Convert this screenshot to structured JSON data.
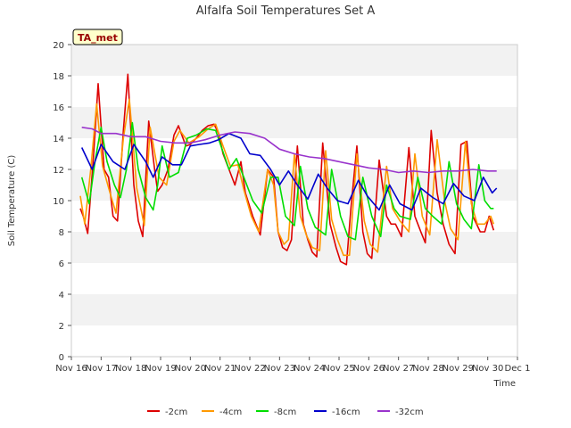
{
  "chart_data": {
    "type": "line",
    "title": "Alfalfa Soil Temperatures Set A",
    "xlabel": "Time",
    "ylabel": "Soil Temperature (C)",
    "badge": "TA_met",
    "ylim": [
      0,
      20
    ],
    "y_ticks": [
      "0",
      "2",
      "4",
      "6",
      "8",
      "10",
      "12",
      "14",
      "16",
      "18",
      "20"
    ],
    "x_ticks": [
      "Nov 16",
      "Nov 17",
      "Nov 18",
      "Nov 19",
      "Nov 20",
      "Nov 21",
      "Nov 22",
      "Nov 23",
      "Nov 24",
      "Nov 25",
      "Nov 26",
      "Nov 27",
      "Nov 28",
      "Nov 29",
      "Nov 30",
      "Dec 1"
    ],
    "x_domain_days": [
      0,
      15
    ],
    "grid": "horizontal alternating bands",
    "legend_position": "bottom",
    "series": [
      {
        "name": "-2cm",
        "color": "#dd0000",
        "x": [
          0.3,
          0.4,
          0.55,
          0.75,
          0.9,
          1.1,
          1.25,
          1.4,
          1.55,
          1.75,
          1.9,
          2.1,
          2.25,
          2.4,
          2.6,
          2.8,
          2.9,
          3.05,
          3.25,
          3.45,
          3.6,
          3.85,
          4.0,
          4.2,
          4.4,
          4.6,
          4.8,
          4.95,
          5.1,
          5.3,
          5.5,
          5.7,
          5.85,
          6.1,
          6.35,
          6.6,
          6.8,
          6.95,
          7.1,
          7.25,
          7.4,
          7.6,
          7.8,
          7.95,
          8.1,
          8.25,
          8.45,
          8.7,
          8.9,
          9.05,
          9.25,
          9.4,
          9.6,
          9.8,
          9.95,
          10.1,
          10.35,
          10.6,
          10.75,
          10.9,
          11.1,
          11.35,
          11.55,
          11.75,
          11.9,
          12.1,
          12.3,
          12.5,
          12.7,
          12.9,
          13.1,
          13.3,
          13.5,
          13.75,
          13.9,
          14.05,
          14.2
        ],
        "values": [
          9.5,
          9.0,
          7.9,
          13.0,
          17.5,
          12.0,
          11.5,
          9.0,
          8.7,
          14.5,
          18.1,
          11.0,
          8.7,
          7.7,
          15.1,
          12.0,
          10.6,
          11.0,
          12.0,
          14.2,
          14.8,
          13.5,
          13.6,
          14.0,
          14.5,
          14.8,
          14.9,
          14.3,
          13.0,
          12.0,
          11.0,
          12.5,
          10.5,
          9.0,
          7.8,
          12.0,
          11.5,
          8.0,
          7.0,
          6.8,
          7.5,
          13.5,
          8.5,
          7.5,
          6.7,
          6.4,
          13.7,
          8.5,
          7.0,
          6.1,
          5.9,
          9.5,
          13.5,
          8.0,
          6.6,
          6.3,
          12.6,
          9.0,
          8.5,
          8.5,
          7.7,
          13.4,
          9.0,
          8.0,
          7.3,
          14.5,
          10.5,
          8.5,
          7.2,
          6.6,
          13.6,
          13.8,
          9.0,
          8.0,
          8.0,
          9.0,
          8.1
        ]
      },
      {
        "name": "-4cm",
        "color": "#ff9900",
        "x": [
          0.3,
          0.45,
          0.65,
          0.85,
          1.05,
          1.3,
          1.5,
          1.75,
          1.95,
          2.2,
          2.45,
          2.65,
          2.95,
          3.2,
          3.45,
          3.65,
          3.95,
          4.3,
          4.6,
          4.85,
          5.1,
          5.35,
          5.6,
          5.8,
          6.05,
          6.3,
          6.6,
          6.8,
          6.95,
          7.15,
          7.3,
          7.5,
          7.7,
          7.9,
          8.1,
          8.35,
          8.55,
          8.75,
          8.95,
          9.15,
          9.35,
          9.6,
          9.85,
          10.05,
          10.3,
          10.6,
          10.8,
          11.05,
          11.35,
          11.55,
          11.8,
          12.05,
          12.3,
          12.55,
          12.75,
          13.0,
          13.25,
          13.45,
          13.65,
          13.9,
          14.1,
          14.2
        ],
        "values": [
          10.3,
          8.5,
          12.0,
          16.2,
          12.2,
          10.5,
          9.2,
          14.0,
          16.5,
          10.8,
          8.4,
          14.7,
          11.5,
          11.0,
          13.8,
          14.5,
          13.7,
          14.1,
          14.6,
          14.9,
          13.5,
          12.2,
          12.3,
          10.7,
          9.0,
          8.0,
          12.0,
          11.0,
          8.0,
          7.2,
          7.5,
          13.0,
          9.0,
          7.8,
          7.0,
          6.8,
          13.2,
          8.8,
          7.5,
          6.5,
          6.5,
          13.0,
          8.7,
          7.2,
          6.7,
          12.2,
          9.5,
          8.7,
          8.0,
          13.0,
          9.0,
          7.8,
          13.9,
          10.0,
          8.2,
          7.5,
          13.8,
          9.8,
          8.5,
          8.5,
          9.0,
          8.5
        ]
      },
      {
        "name": "-8cm",
        "color": "#00dd00",
        "x": [
          0.35,
          0.6,
          0.8,
          1.0,
          1.2,
          1.45,
          1.65,
          1.85,
          2.05,
          2.25,
          2.5,
          2.75,
          2.9,
          3.05,
          3.3,
          3.6,
          3.9,
          4.2,
          4.55,
          4.85,
          5.05,
          5.3,
          5.55,
          5.8,
          6.1,
          6.4,
          6.7,
          6.95,
          7.2,
          7.5,
          7.7,
          7.95,
          8.2,
          8.55,
          8.75,
          9.05,
          9.3,
          9.55,
          9.8,
          10.1,
          10.4,
          10.6,
          10.85,
          11.05,
          11.4,
          11.65,
          11.9,
          12.15,
          12.45,
          12.7,
          12.95,
          13.2,
          13.45,
          13.7,
          13.9,
          14.1,
          14.2
        ],
        "values": [
          11.5,
          9.8,
          12.6,
          14.7,
          12.5,
          11.0,
          10.2,
          12.0,
          15.0,
          12.0,
          10.2,
          9.4,
          11.0,
          13.5,
          11.5,
          11.8,
          14.0,
          14.2,
          14.6,
          14.5,
          13.4,
          12.0,
          12.7,
          11.5,
          10.0,
          9.2,
          11.5,
          11.5,
          9.0,
          8.4,
          12.2,
          9.5,
          8.3,
          7.8,
          12.0,
          9.0,
          7.7,
          7.5,
          11.5,
          9.0,
          7.7,
          11.0,
          9.5,
          9.0,
          8.8,
          11.5,
          9.5,
          9.0,
          8.5,
          12.5,
          9.8,
          8.8,
          8.2,
          12.3,
          10.0,
          9.5,
          9.5
        ]
      },
      {
        "name": "-16cm",
        "color": "#0000cc",
        "x": [
          0.35,
          0.7,
          1.0,
          1.4,
          1.8,
          2.1,
          2.5,
          2.75,
          3.05,
          3.4,
          3.7,
          4.0,
          4.3,
          4.65,
          4.95,
          5.3,
          5.7,
          6.0,
          6.35,
          6.7,
          7.0,
          7.3,
          7.6,
          7.95,
          8.3,
          8.6,
          8.95,
          9.3,
          9.65,
          9.95,
          10.35,
          10.7,
          11.05,
          11.45,
          11.75,
          12.15,
          12.5,
          12.85,
          13.2,
          13.55,
          13.85,
          14.15,
          14.3
        ],
        "values": [
          13.4,
          12.0,
          13.6,
          12.5,
          12.0,
          13.6,
          12.5,
          11.5,
          12.8,
          12.3,
          12.3,
          13.5,
          13.6,
          13.7,
          13.9,
          14.3,
          14.0,
          13.0,
          12.9,
          12.0,
          11.0,
          11.9,
          11.0,
          10.1,
          11.7,
          10.8,
          10.0,
          9.8,
          11.3,
          10.3,
          9.4,
          11.0,
          9.8,
          9.4,
          10.8,
          10.2,
          9.8,
          11.1,
          10.3,
          10.0,
          11.5,
          10.5,
          10.8
        ]
      },
      {
        "name": "-32cm",
        "color": "#9933cc",
        "x": [
          0.35,
          0.7,
          1.0,
          1.5,
          2.0,
          2.5,
          3.0,
          3.5,
          4.0,
          4.5,
          5.0,
          5.5,
          6.0,
          6.5,
          7.0,
          7.5,
          8.0,
          8.5,
          9.0,
          9.5,
          10.0,
          10.5,
          11.0,
          11.5,
          12.0,
          12.5,
          13.0,
          13.5,
          14.0,
          14.3
        ],
        "values": [
          14.7,
          14.6,
          14.3,
          14.3,
          14.1,
          14.1,
          13.8,
          13.7,
          13.7,
          13.9,
          14.2,
          14.4,
          14.3,
          14.0,
          13.3,
          13.0,
          12.8,
          12.7,
          12.5,
          12.3,
          12.1,
          12.0,
          11.8,
          11.9,
          11.8,
          11.9,
          11.9,
          12.0,
          11.9,
          11.9
        ]
      }
    ]
  }
}
